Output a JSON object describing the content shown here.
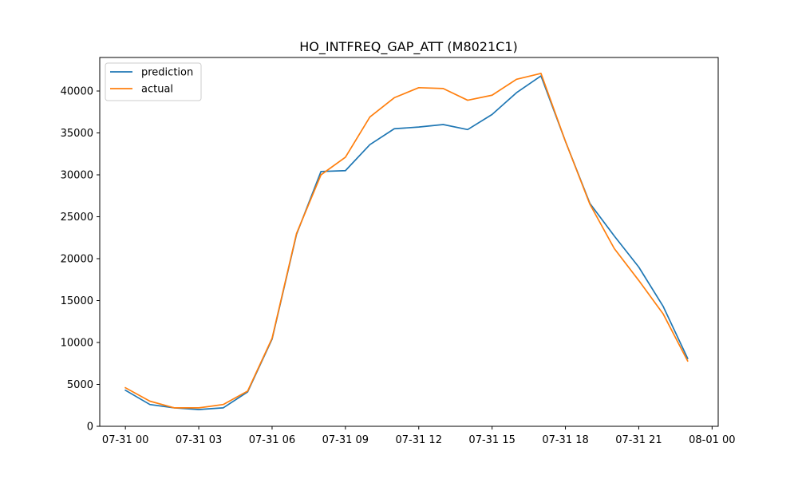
{
  "chart_data": {
    "type": "line",
    "title": "HO_INTFREQ_GAP_ATT (M8021C1)",
    "xlabel": "",
    "ylabel": "",
    "x": [
      "07-31 00",
      "07-31 01",
      "07-31 02",
      "07-31 03",
      "07-31 04",
      "07-31 05",
      "07-31 06",
      "07-31 07",
      "07-31 08",
      "07-31 09",
      "07-31 10",
      "07-31 11",
      "07-31 12",
      "07-31 13",
      "07-31 14",
      "07-31 15",
      "07-31 16",
      "07-31 17",
      "07-31 18",
      "07-31 19",
      "07-31 20",
      "07-31 21",
      "07-31 22",
      "07-31 23"
    ],
    "x_hours": [
      0,
      1,
      2,
      3,
      4,
      5,
      6,
      7,
      8,
      9,
      10,
      11,
      12,
      13,
      14,
      15,
      16,
      17,
      18,
      19,
      20,
      21,
      22,
      23
    ],
    "xlim": [
      -1.05,
      24.25
    ],
    "xticks": [
      {
        "hour": 0,
        "label": "07-31 00"
      },
      {
        "hour": 3,
        "label": "07-31 03"
      },
      {
        "hour": 6,
        "label": "07-31 06"
      },
      {
        "hour": 9,
        "label": "07-31 09"
      },
      {
        "hour": 12,
        "label": "07-31 12"
      },
      {
        "hour": 15,
        "label": "07-31 15"
      },
      {
        "hour": 18,
        "label": "07-31 18"
      },
      {
        "hour": 21,
        "label": "07-31 21"
      },
      {
        "hour": 24,
        "label": "08-01 00"
      }
    ],
    "ylim": [
      0,
      44000
    ],
    "yticks": [
      0,
      5000,
      10000,
      15000,
      20000,
      25000,
      30000,
      35000,
      40000
    ],
    "grid": false,
    "legend_position": "upper-left",
    "series": [
      {
        "name": "prediction",
        "color": "#1f77b4",
        "values": [
          4300,
          2600,
          2200,
          2000,
          2200,
          4100,
          10400,
          22900,
          30400,
          30500,
          33600,
          35500,
          35700,
          36000,
          35400,
          37200,
          39800,
          41800,
          34000,
          26600,
          22700,
          19000,
          14300,
          8100
        ]
      },
      {
        "name": "actual",
        "color": "#ff7f0e",
        "values": [
          4600,
          3000,
          2200,
          2200,
          2600,
          4200,
          10500,
          23000,
          30000,
          32100,
          36900,
          39200,
          40400,
          40300,
          38900,
          39500,
          41400,
          42100,
          34000,
          26500,
          21200,
          17400,
          13400,
          7800
        ]
      }
    ]
  }
}
